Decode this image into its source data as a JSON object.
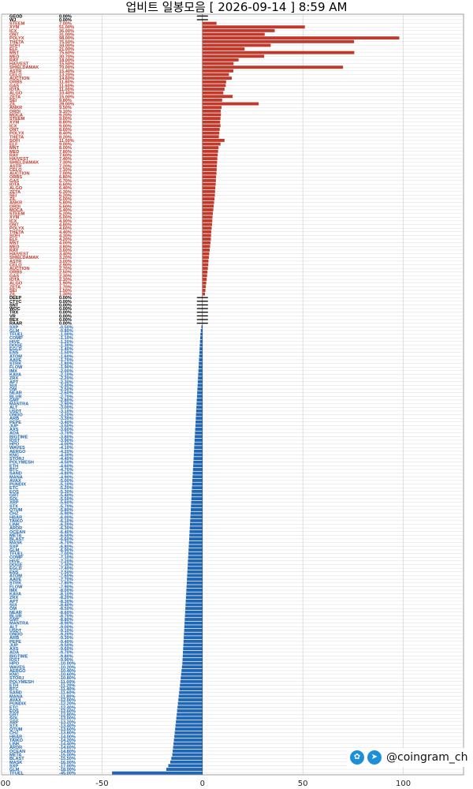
{
  "title": "업비트 일봉모음 [ 2026-09-14 ]  8:59 AM",
  "watermark": {
    "twitter_icon": "bird-icon",
    "telegram_icon": "paper-plane-icon",
    "handle": "@coingram_ch"
  },
  "colors": {
    "up": "#c0392b",
    "flat": "#000000",
    "down": "#1f66b5",
    "grid": "#dddddd"
  },
  "chart_data": {
    "type": "bar",
    "orientation": "horizontal",
    "xlim": [
      -100,
      130
    ],
    "xticks": [
      -100,
      -50,
      0,
      50,
      100
    ],
    "grid": true,
    "rows_top": [
      {
        "label": "GEOD",
        "pct": "0.00%"
      },
      {
        "label": "WJ",
        "pct": "0.00%"
      }
    ],
    "up_count": 75,
    "flat_labels": [
      "DEEP",
      "CTYC",
      "SNT",
      "WOC",
      "TRX",
      "VR",
      "REX",
      "RAAR"
    ],
    "down_count": 123,
    "visible_up_labels": [
      "STEEM",
      "XYM",
      "ICX",
      "ONT",
      "POLYX",
      "THETA",
      "SOFI",
      "ELF",
      "MNT",
      "MED",
      "RAY",
      "HAIVEST",
      "SHIELDAMAK",
      "ASTR",
      "CELO",
      "AUCTION",
      "ORBS",
      "GAS",
      "IOTA",
      "ALGO",
      "ZETA",
      "SEI",
      "ZIL",
      "ANKR",
      "ORDI",
      "MOCA"
    ],
    "visible_down_labels": [
      "SXP",
      "GLM",
      "TFUEL",
      "COMP",
      "HIVE",
      "DOGE",
      "EGLD",
      "ENS",
      "ATOM",
      "AAVE",
      "STRK",
      "FLOW",
      "IMX",
      "KAVA",
      "ZRX",
      "APT",
      "SUI",
      "OM",
      "NEAR",
      "BLUR",
      "GMT",
      "MANTRA",
      "ALT",
      "USDT",
      "ONDO",
      "ARB",
      "PEPE",
      "JUP",
      "AXS",
      "ADA",
      "BIGTIME",
      "IOST",
      "HPO",
      "WAVES",
      "AERGO",
      "KNC",
      "STORJ",
      "POLYMESH",
      "ETH",
      "BTC",
      "SAND",
      "MANA",
      "AVAX",
      "PUNDIX",
      "ETC",
      "EOS",
      "GRT",
      "SOL",
      "XRP",
      "STX",
      "QTUM",
      "CHZ",
      "HBAR",
      "TAIKO",
      "LINK",
      "ARDR",
      "OCEAN",
      "META",
      "BLAST",
      "MASK"
    ],
    "series": [
      {
        "values": [
          7.0,
          51.0,
          36.0,
          31.0,
          98.0,
          75.5,
          34.0,
          21.0,
          75.6,
          30.7,
          18.0,
          15.5,
          70.0,
          15.4,
          13.2,
          14.6,
          11.8,
          11.6,
          11.0,
          10.4,
          15.0,
          9.8,
          28.0,
          9.5,
          9.1,
          9.2,
          9.0,
          8.8,
          9.0,
          8.6,
          8.4,
          8.2,
          11.0,
          9.0,
          8.0,
          7.8,
          7.6,
          7.4,
          7.3,
          7.2,
          7.1,
          7.0,
          6.8,
          6.7,
          6.6,
          6.4,
          6.3,
          6.2,
          6.0,
          5.8,
          5.6,
          5.4,
          5.2,
          5.0,
          4.9,
          4.8,
          4.6,
          4.4,
          4.3,
          4.2,
          4.0,
          3.8,
          3.6,
          3.4,
          3.2,
          3.0,
          2.9,
          2.7,
          2.5,
          2.3,
          2.1,
          1.9,
          1.7,
          1.5,
          1.3
        ]
      },
      {
        "values": [
          -0.5,
          -0.8,
          -1.0,
          -1.1,
          -1.2,
          -1.3,
          -1.4,
          -1.5,
          -1.6,
          -1.7,
          -1.8,
          -1.9,
          -2.0,
          -2.1,
          -2.2,
          -2.3,
          -2.4,
          -2.5,
          -2.6,
          -2.7,
          -2.8,
          -2.9,
          -3.0,
          -3.1,
          -3.2,
          -3.3,
          -3.4,
          -3.5,
          -3.6,
          -3.7,
          -3.8,
          -3.9,
          -4.0,
          -4.1,
          -4.2,
          -4.3,
          -4.4,
          -4.5,
          -4.6,
          -4.7,
          -4.8,
          -4.9,
          -5.0,
          -5.1,
          -5.2,
          -5.3,
          -5.4,
          -5.5,
          -5.6,
          -5.7,
          -5.8,
          -5.9,
          -6.0,
          -6.1,
          -6.2,
          -6.3,
          -6.4,
          -6.5,
          -6.6,
          -6.7,
          -6.8,
          -6.9,
          -7.0,
          -7.1,
          -7.2,
          -7.3,
          -7.4,
          -7.5,
          -7.6,
          -7.7,
          -7.8,
          -7.9,
          -8.0,
          -8.1,
          -8.2,
          -8.3,
          -8.4,
          -8.5,
          -8.6,
          -8.7,
          -8.8,
          -8.9,
          -9.0,
          -9.1,
          -9.2,
          -9.3,
          -9.4,
          -9.5,
          -9.6,
          -9.7,
          -9.8,
          -9.9,
          -10.0,
          -10.2,
          -10.4,
          -10.6,
          -10.8,
          -11.0,
          -11.2,
          -11.4,
          -11.6,
          -11.8,
          -12.0,
          -12.2,
          -12.4,
          -12.6,
          -12.8,
          -13.0,
          -13.2,
          -13.4,
          -13.6,
          -13.8,
          -14.0,
          -14.2,
          -14.4,
          -14.6,
          -14.8,
          -15.0,
          -15.5,
          -16.0,
          -17.0,
          -18.0,
          -45.0
        ]
      }
    ]
  }
}
